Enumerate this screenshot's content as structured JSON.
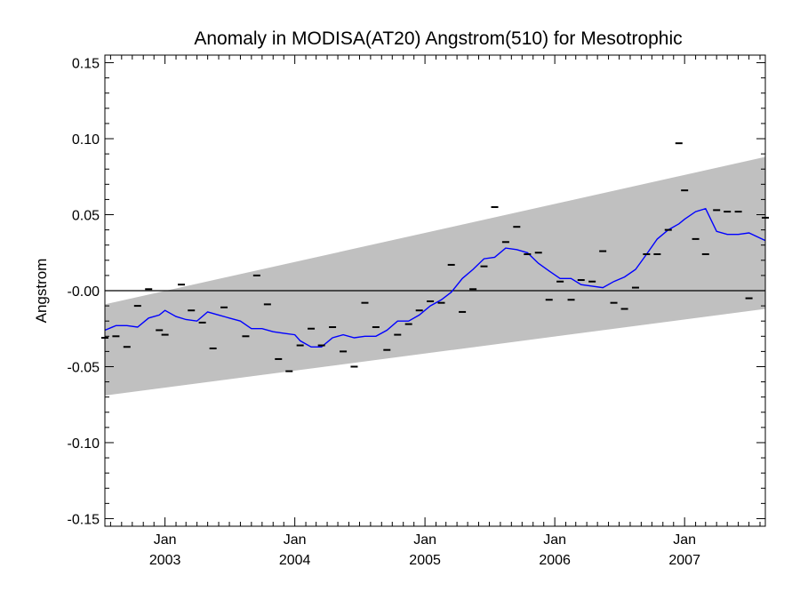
{
  "chart_data": {
    "type": "scatter",
    "title": "Anomaly in MODISA(AT20) Angstrom(510) for Mesotrophic",
    "xlabel": "",
    "ylabel": "Angstrom",
    "xlim": [
      "2002-07-16",
      "2007-08-16"
    ],
    "ylim": [
      -0.155,
      0.155
    ],
    "y_ticks": [
      {
        "value": 0.15,
        "label": "0.15"
      },
      {
        "value": 0.1,
        "label": "0.10"
      },
      {
        "value": 0.05,
        "label": "0.05"
      },
      {
        "value": 0.0,
        "label": "-0.00"
      },
      {
        "value": -0.05,
        "label": "-0.05"
      },
      {
        "value": -0.1,
        "label": "-0.10"
      },
      {
        "value": -0.15,
        "label": "-0.15"
      }
    ],
    "x_ticks": [
      {
        "date": "2003-01-01",
        "label_month": "Jan",
        "label_year": "2003"
      },
      {
        "date": "2004-01-01",
        "label_month": "Jan",
        "label_year": "2004"
      },
      {
        "date": "2005-01-01",
        "label_month": "Jan",
        "label_year": "2005"
      },
      {
        "date": "2006-01-01",
        "label_month": "Jan",
        "label_year": "2006"
      },
      {
        "date": "2007-01-01",
        "label_month": "Jan",
        "label_year": "2007"
      }
    ],
    "band": {
      "color": "#c0c0c0",
      "upper": [
        {
          "x": "2002-07-16",
          "y": -0.009
        },
        {
          "x": "2007-08-16",
          "y": 0.088
        }
      ],
      "lower": [
        {
          "x": "2002-07-16",
          "y": -0.069
        },
        {
          "x": "2007-08-16",
          "y": -0.012
        }
      ]
    },
    "zero_line": {
      "y": 0.0,
      "color": "#000000"
    },
    "series": [
      {
        "kind": "markers",
        "marker": "dash",
        "color": "#000000",
        "points": [
          {
            "x": "2002-07-16",
            "y": -0.031
          },
          {
            "x": "2002-08-16",
            "y": -0.03
          },
          {
            "x": "2002-09-16",
            "y": -0.037
          },
          {
            "x": "2002-10-16",
            "y": -0.01
          },
          {
            "x": "2002-11-16",
            "y": 0.001
          },
          {
            "x": "2002-12-16",
            "y": -0.026
          },
          {
            "x": "2003-01-01",
            "y": -0.029
          },
          {
            "x": "2003-02-16",
            "y": 0.004
          },
          {
            "x": "2003-03-16",
            "y": -0.013
          },
          {
            "x": "2003-04-16",
            "y": -0.021
          },
          {
            "x": "2003-05-16",
            "y": -0.038
          },
          {
            "x": "2003-06-16",
            "y": -0.011
          },
          {
            "x": "2003-08-16",
            "y": -0.03
          },
          {
            "x": "2003-09-16",
            "y": 0.01
          },
          {
            "x": "2003-10-16",
            "y": -0.009
          },
          {
            "x": "2003-11-16",
            "y": -0.045
          },
          {
            "x": "2003-12-16",
            "y": -0.053
          },
          {
            "x": "2004-01-16",
            "y": -0.036
          },
          {
            "x": "2004-02-16",
            "y": -0.025
          },
          {
            "x": "2004-03-16",
            "y": -0.036
          },
          {
            "x": "2004-04-16",
            "y": -0.024
          },
          {
            "x": "2004-05-16",
            "y": -0.04
          },
          {
            "x": "2004-06-16",
            "y": -0.05
          },
          {
            "x": "2004-07-16",
            "y": -0.008
          },
          {
            "x": "2004-08-16",
            "y": -0.024
          },
          {
            "x": "2004-09-16",
            "y": -0.039
          },
          {
            "x": "2004-10-16",
            "y": -0.029
          },
          {
            "x": "2004-11-16",
            "y": -0.022
          },
          {
            "x": "2004-12-16",
            "y": -0.013
          },
          {
            "x": "2005-01-16",
            "y": -0.007
          },
          {
            "x": "2005-02-16",
            "y": -0.008
          },
          {
            "x": "2005-03-16",
            "y": 0.017
          },
          {
            "x": "2005-04-16",
            "y": -0.014
          },
          {
            "x": "2005-05-16",
            "y": 0.001
          },
          {
            "x": "2005-06-16",
            "y": 0.016
          },
          {
            "x": "2005-07-16",
            "y": 0.055
          },
          {
            "x": "2005-08-16",
            "y": 0.032
          },
          {
            "x": "2005-09-16",
            "y": 0.042
          },
          {
            "x": "2005-10-16",
            "y": 0.024
          },
          {
            "x": "2005-11-16",
            "y": 0.025
          },
          {
            "x": "2005-12-16",
            "y": -0.006
          },
          {
            "x": "2006-01-16",
            "y": 0.006
          },
          {
            "x": "2006-02-16",
            "y": -0.006
          },
          {
            "x": "2006-03-16",
            "y": 0.007
          },
          {
            "x": "2006-04-16",
            "y": 0.006
          },
          {
            "x": "2006-05-16",
            "y": 0.026
          },
          {
            "x": "2006-06-16",
            "y": -0.008
          },
          {
            "x": "2006-07-16",
            "y": -0.012
          },
          {
            "x": "2006-08-16",
            "y": 0.002
          },
          {
            "x": "2006-09-16",
            "y": 0.024
          },
          {
            "x": "2006-10-16",
            "y": 0.024
          },
          {
            "x": "2006-11-16",
            "y": 0.04
          },
          {
            "x": "2006-12-16",
            "y": 0.097
          },
          {
            "x": "2007-01-01",
            "y": 0.066
          },
          {
            "x": "2007-02-01",
            "y": 0.034
          },
          {
            "x": "2007-03-01",
            "y": 0.024
          },
          {
            "x": "2007-04-01",
            "y": 0.053
          },
          {
            "x": "2007-05-01",
            "y": 0.052
          },
          {
            "x": "2007-06-01",
            "y": 0.052
          },
          {
            "x": "2007-07-01",
            "y": -0.005
          },
          {
            "x": "2007-08-16",
            "y": 0.048
          }
        ]
      },
      {
        "kind": "line",
        "color": "#0000ff",
        "points": [
          {
            "x": "2002-07-16",
            "y": -0.026
          },
          {
            "x": "2002-08-16",
            "y": -0.023
          },
          {
            "x": "2002-09-16",
            "y": -0.023
          },
          {
            "x": "2002-10-16",
            "y": -0.024
          },
          {
            "x": "2002-11-16",
            "y": -0.018
          },
          {
            "x": "2002-12-16",
            "y": -0.016
          },
          {
            "x": "2003-01-01",
            "y": -0.013
          },
          {
            "x": "2003-02-01",
            "y": -0.017
          },
          {
            "x": "2003-03-01",
            "y": -0.019
          },
          {
            "x": "2003-04-01",
            "y": -0.02
          },
          {
            "x": "2003-05-01",
            "y": -0.014
          },
          {
            "x": "2003-06-01",
            "y": -0.016
          },
          {
            "x": "2003-07-01",
            "y": -0.018
          },
          {
            "x": "2003-08-01",
            "y": -0.02
          },
          {
            "x": "2003-09-01",
            "y": -0.025
          },
          {
            "x": "2003-10-01",
            "y": -0.025
          },
          {
            "x": "2003-11-01",
            "y": -0.027
          },
          {
            "x": "2003-12-01",
            "y": -0.028
          },
          {
            "x": "2004-01-01",
            "y": -0.029
          },
          {
            "x": "2004-01-16",
            "y": -0.033
          },
          {
            "x": "2004-02-16",
            "y": -0.037
          },
          {
            "x": "2004-03-16",
            "y": -0.037
          },
          {
            "x": "2004-04-16",
            "y": -0.031
          },
          {
            "x": "2004-05-16",
            "y": -0.029
          },
          {
            "x": "2004-06-16",
            "y": -0.031
          },
          {
            "x": "2004-07-16",
            "y": -0.03
          },
          {
            "x": "2004-08-16",
            "y": -0.03
          },
          {
            "x": "2004-09-16",
            "y": -0.026
          },
          {
            "x": "2004-10-16",
            "y": -0.02
          },
          {
            "x": "2004-11-16",
            "y": -0.02
          },
          {
            "x": "2004-12-16",
            "y": -0.016
          },
          {
            "x": "2005-01-16",
            "y": -0.01
          },
          {
            "x": "2005-02-16",
            "y": -0.006
          },
          {
            "x": "2005-03-16",
            "y": -0.001
          },
          {
            "x": "2005-04-16",
            "y": 0.008
          },
          {
            "x": "2005-05-16",
            "y": 0.014
          },
          {
            "x": "2005-06-16",
            "y": 0.021
          },
          {
            "x": "2005-07-16",
            "y": 0.022
          },
          {
            "x": "2005-08-16",
            "y": 0.028
          },
          {
            "x": "2005-09-16",
            "y": 0.027
          },
          {
            "x": "2005-10-16",
            "y": 0.025
          },
          {
            "x": "2005-11-16",
            "y": 0.018
          },
          {
            "x": "2005-12-16",
            "y": 0.013
          },
          {
            "x": "2006-01-16",
            "y": 0.008
          },
          {
            "x": "2006-02-16",
            "y": 0.008
          },
          {
            "x": "2006-03-16",
            "y": 0.004
          },
          {
            "x": "2006-04-16",
            "y": 0.003
          },
          {
            "x": "2006-05-16",
            "y": 0.002
          },
          {
            "x": "2006-06-16",
            "y": 0.006
          },
          {
            "x": "2006-07-16",
            "y": 0.009
          },
          {
            "x": "2006-08-16",
            "y": 0.014
          },
          {
            "x": "2006-09-16",
            "y": 0.024
          },
          {
            "x": "2006-10-16",
            "y": 0.034
          },
          {
            "x": "2006-11-16",
            "y": 0.04
          },
          {
            "x": "2006-12-16",
            "y": 0.044
          },
          {
            "x": "2007-01-01",
            "y": 0.047
          },
          {
            "x": "2007-02-01",
            "y": 0.052
          },
          {
            "x": "2007-03-01",
            "y": 0.054
          },
          {
            "x": "2007-04-01",
            "y": 0.039
          },
          {
            "x": "2007-05-01",
            "y": 0.037
          },
          {
            "x": "2007-06-01",
            "y": 0.037
          },
          {
            "x": "2007-07-01",
            "y": 0.038
          },
          {
            "x": "2007-08-16",
            "y": 0.033
          }
        ]
      }
    ]
  }
}
